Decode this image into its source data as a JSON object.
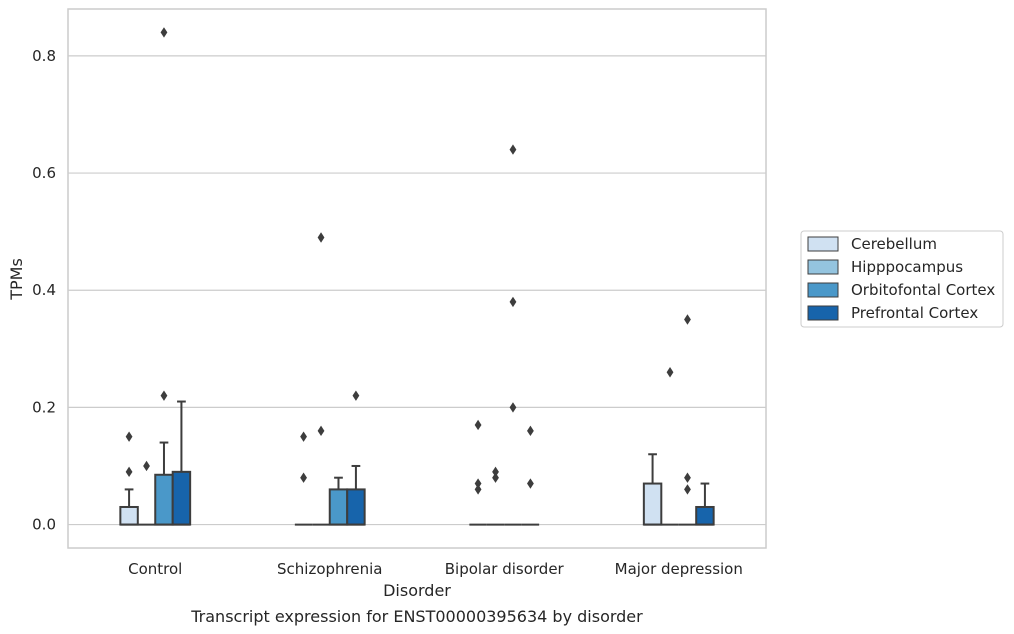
{
  "chart_data": {
    "type": "box",
    "caption": "Transcript expression for ENST00000395634 by disorder",
    "xlabel": "Disorder",
    "ylabel": "TPMs",
    "ylim": [
      -0.04,
      0.88
    ],
    "yticks": [
      0.0,
      0.2,
      0.4,
      0.6,
      0.8
    ],
    "ytick_labels": [
      "0.0",
      "0.2",
      "0.4",
      "0.6",
      "0.8"
    ],
    "grid": "horizontal",
    "legend_position": "right",
    "categories": [
      "Control",
      "Schizophrenia",
      "Bipolar disorder",
      "Major depression"
    ],
    "series": [
      {
        "name": "Cerebellum",
        "color": "#d0e1f2",
        "boxes": [
          {
            "q1": 0.0,
            "median": 0.0,
            "q3": 0.03,
            "whisker_low": 0.0,
            "whisker_high": 0.06,
            "outliers": [
              0.15,
              0.09
            ]
          },
          {
            "q1": 0.0,
            "median": 0.0,
            "q3": 0.0,
            "whisker_low": 0.0,
            "whisker_high": 0.0,
            "outliers": [
              0.15,
              0.08
            ]
          },
          {
            "q1": 0.0,
            "median": 0.0,
            "q3": 0.0,
            "whisker_low": 0.0,
            "whisker_high": 0.0,
            "outliers": [
              0.17,
              0.07,
              0.06
            ]
          },
          {
            "q1": 0.0,
            "median": 0.0,
            "q3": 0.07,
            "whisker_low": 0.0,
            "whisker_high": 0.12,
            "outliers": []
          }
        ]
      },
      {
        "name": "Hipppocampus",
        "color": "#94c4df",
        "boxes": [
          {
            "q1": 0.0,
            "median": 0.0,
            "q3": 0.0,
            "whisker_low": 0.0,
            "whisker_high": 0.0,
            "outliers": [
              0.1
            ]
          },
          {
            "q1": 0.0,
            "median": 0.0,
            "q3": 0.0,
            "whisker_low": 0.0,
            "whisker_high": 0.0,
            "outliers": [
              0.49,
              0.16
            ]
          },
          {
            "q1": 0.0,
            "median": 0.0,
            "q3": 0.0,
            "whisker_low": 0.0,
            "whisker_high": 0.0,
            "outliers": [
              0.09,
              0.08
            ]
          },
          {
            "q1": 0.0,
            "median": 0.0,
            "q3": 0.0,
            "whisker_low": 0.0,
            "whisker_high": 0.0,
            "outliers": [
              0.26
            ]
          }
        ]
      },
      {
        "name": "Orbitofontal Cortex",
        "color": "#4a98c9",
        "boxes": [
          {
            "q1": 0.0,
            "median": 0.0,
            "q3": 0.085,
            "whisker_low": 0.0,
            "whisker_high": 0.14,
            "outliers": [
              0.84,
              0.22
            ]
          },
          {
            "q1": 0.0,
            "median": 0.0,
            "q3": 0.06,
            "whisker_low": 0.0,
            "whisker_high": 0.08,
            "outliers": []
          },
          {
            "q1": 0.0,
            "median": 0.0,
            "q3": 0.0,
            "whisker_low": 0.0,
            "whisker_high": 0.0,
            "outliers": [
              0.64,
              0.38,
              0.2
            ]
          },
          {
            "q1": 0.0,
            "median": 0.0,
            "q3": 0.0,
            "whisker_low": 0.0,
            "whisker_high": 0.0,
            "outliers": [
              0.35,
              0.08,
              0.06
            ]
          }
        ]
      },
      {
        "name": "Prefrontal Cortex",
        "color": "#1764ab",
        "boxes": [
          {
            "q1": 0.0,
            "median": 0.0,
            "q3": 0.09,
            "whisker_low": 0.0,
            "whisker_high": 0.21,
            "outliers": []
          },
          {
            "q1": 0.0,
            "median": 0.0,
            "q3": 0.06,
            "whisker_low": 0.0,
            "whisker_high": 0.1,
            "outliers": [
              0.22
            ]
          },
          {
            "q1": 0.0,
            "median": 0.0,
            "q3": 0.0,
            "whisker_low": 0.0,
            "whisker_high": 0.0,
            "outliers": [
              0.16,
              0.07
            ]
          },
          {
            "q1": 0.0,
            "median": 0.0,
            "q3": 0.03,
            "whisker_low": 0.0,
            "whisker_high": 0.07,
            "outliers": []
          }
        ]
      }
    ]
  }
}
